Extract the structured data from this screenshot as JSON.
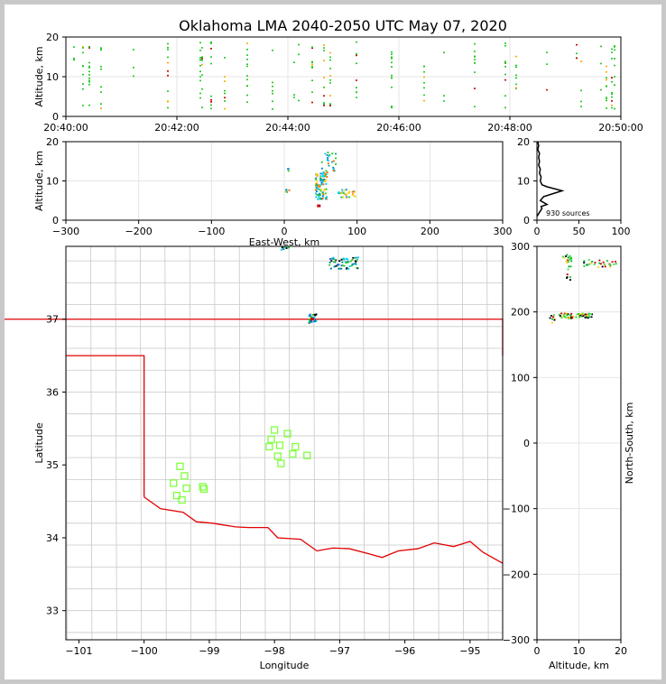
{
  "title": "Oklahoma LMA 2040-2050 UTC May 07, 2020",
  "chart_data": [
    {
      "panel": "time-altitude",
      "type": "scatter",
      "ylabel": "Altitude, km",
      "xlim": [
        "20:40:00",
        "20:50:00"
      ],
      "ylim": [
        0,
        20
      ],
      "x_ticks": [
        "20:40:00",
        "20:42:00",
        "20:44:00",
        "20:46:00",
        "20:48:00",
        "20:50:00"
      ],
      "y_ticks": [
        "0",
        "10",
        "20"
      ],
      "grid": true
    },
    {
      "panel": "east-west-altitude",
      "type": "scatter",
      "xlabel": "East-West, km",
      "ylabel": "Altitude, km",
      "xlim": [
        -300,
        300
      ],
      "ylim": [
        0,
        20
      ],
      "x_ticks": [
        "−300",
        "−200",
        "−100",
        "0",
        "100",
        "200",
        "300"
      ],
      "y_ticks": [
        "0",
        "10",
        "20"
      ],
      "grid": true
    },
    {
      "panel": "altitude-histogram",
      "type": "line",
      "annotation": "930 sources",
      "xlim": [
        0,
        100
      ],
      "ylim": [
        0,
        20
      ],
      "x_ticks": [
        "0",
        "50",
        "100"
      ],
      "y_ticks": [
        "0",
        "10",
        "20"
      ],
      "profile": [
        [
          0,
          1
        ],
        [
          3,
          2
        ],
        [
          6,
          3
        ],
        [
          5,
          3.5
        ],
        [
          12,
          4
        ],
        [
          4,
          5
        ],
        [
          8,
          6
        ],
        [
          30,
          7.5
        ],
        [
          12,
          8.5
        ],
        [
          6,
          9
        ],
        [
          4,
          10
        ],
        [
          5,
          11
        ],
        [
          3,
          12
        ],
        [
          4,
          13
        ],
        [
          2,
          14
        ],
        [
          3,
          15
        ],
        [
          2,
          16
        ],
        [
          3,
          17
        ],
        [
          1,
          18
        ],
        [
          2,
          19
        ],
        [
          1,
          20
        ]
      ]
    },
    {
      "panel": "plan-view",
      "type": "scatter",
      "xlabel": "Longitude",
      "ylabel": "Latitude",
      "xlim": [
        -101.2,
        -94.5
      ],
      "ylim": [
        32.6,
        38.0
      ],
      "x_ticks": [
        "−101",
        "−100",
        "−99",
        "−98",
        "−97",
        "−96",
        "−95"
      ],
      "y_ticks": [
        "33",
        "34",
        "35",
        "36",
        "37"
      ],
      "stations": [
        [
          -99.45,
          34.98
        ],
        [
          -99.38,
          34.85
        ],
        [
          -99.55,
          34.75
        ],
        [
          -99.35,
          34.68
        ],
        [
          -99.5,
          34.58
        ],
        [
          -99.42,
          34.52
        ],
        [
          -99.1,
          34.7
        ],
        [
          -99.08,
          34.67
        ],
        [
          -98.0,
          35.48
        ],
        [
          -98.05,
          35.35
        ],
        [
          -98.08,
          35.25
        ],
        [
          -97.92,
          35.27
        ],
        [
          -97.8,
          35.43
        ],
        [
          -97.68,
          35.25
        ],
        [
          -97.72,
          35.15
        ],
        [
          -97.95,
          35.12
        ],
        [
          -97.9,
          35.02
        ],
        [
          -97.5,
          35.13
        ]
      ],
      "lightning_clusters": [
        {
          "lon": -96.95,
          "lat": 37.78,
          "n": 60,
          "spread": [
            0.22,
            0.08
          ]
        },
        {
          "lon": -97.43,
          "lat": 37.02,
          "n": 30,
          "spread": [
            0.06,
            0.06
          ]
        },
        {
          "lon": -97.85,
          "lat": 37.98,
          "n": 8,
          "spread": [
            0.06,
            0.02
          ]
        }
      ]
    },
    {
      "panel": "altitude-north-south",
      "type": "scatter",
      "xlabel": "Altitude, km",
      "ylabel": "North-South, km",
      "xlim": [
        0,
        20
      ],
      "ylim": [
        -300,
        300
      ],
      "x_ticks": [
        "0",
        "10",
        "20"
      ],
      "y_ticks": [
        "−300",
        "−200",
        "−100",
        "0",
        "100",
        "200",
        "300"
      ]
    }
  ],
  "colors": {
    "state_border": "#e00000",
    "county_lines": "#c8c8c8",
    "station_marker": "#80ff40",
    "histogram": "#000000",
    "grid": "#e6e6e6"
  }
}
